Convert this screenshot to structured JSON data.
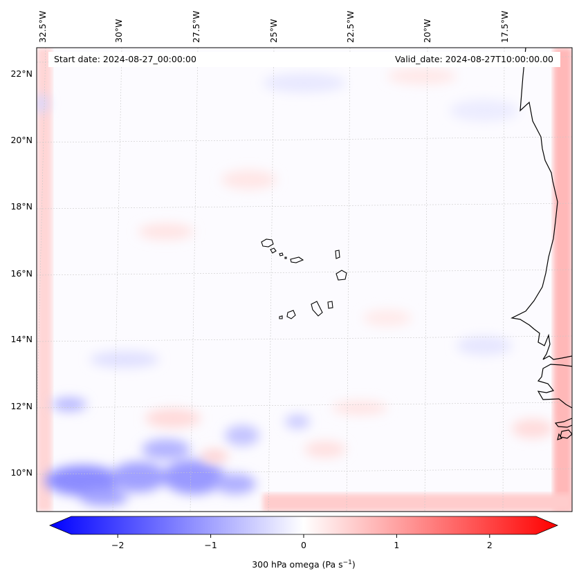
{
  "map": {
    "start_date_label": "Start date: 2024-08-27_00:00:00",
    "valid_date_label": "Valid_date: 2024-08-27T10:00:00.00",
    "lon_labels": [
      "32.5°W",
      "30°W",
      "27.5°W",
      "25°W",
      "22.5°W",
      "20°W",
      "17.5°W"
    ],
    "lat_labels": [
      "22°N",
      "20°N",
      "18°N",
      "16°N",
      "14°N",
      "12°N",
      "10°N"
    ],
    "colors": {
      "negative": "#0000ff",
      "zero": "#ffffff",
      "positive": "#ff0000",
      "coastline": "#000000",
      "gridline": "#b0b0b0"
    }
  },
  "colorbar": {
    "ticks": [
      -2,
      -1,
      0,
      1,
      2
    ],
    "tick_labels": [
      "−2",
      "−1",
      "0",
      "1",
      "2"
    ],
    "range": [
      -2.7,
      2.7
    ],
    "label_main": "300 hPa omega (Pa s",
    "label_sup": "−1",
    "label_end": ")"
  }
}
